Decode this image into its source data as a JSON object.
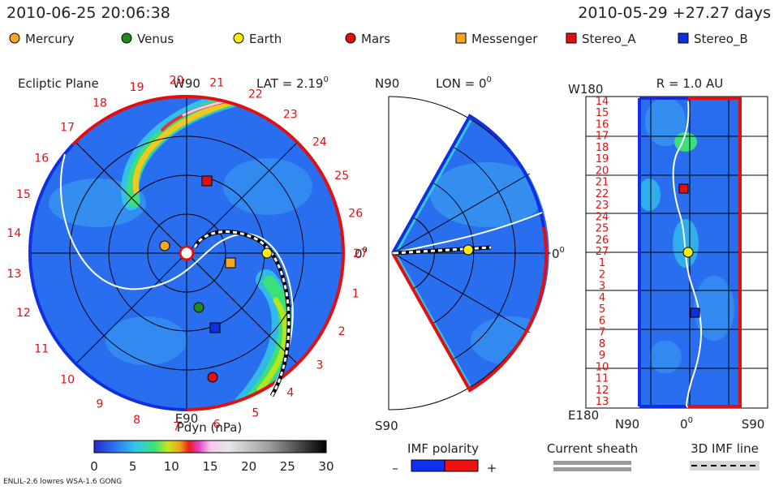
{
  "header": {
    "datetime": "2010-06-25 20:06:38",
    "reference": "2010-05-29 +27.27 days"
  },
  "legend": [
    {
      "label": "Mercury",
      "shape": "circle",
      "color": "#f5a623"
    },
    {
      "label": "Venus",
      "shape": "circle",
      "color": "#1e8a1e"
    },
    {
      "label": "Earth",
      "shape": "circle",
      "color": "#ffee00"
    },
    {
      "label": "Mars",
      "shape": "circle",
      "color": "#e01010"
    },
    {
      "label": "Messenger",
      "shape": "square",
      "color": "#f5a623"
    },
    {
      "label": "Stereo_A",
      "shape": "square",
      "color": "#e01010"
    },
    {
      "label": "Stereo_B",
      "shape": "square",
      "color": "#1030e0"
    }
  ],
  "panels": {
    "ecliptic": {
      "title": "Ecliptic Plane",
      "top_label": "W90",
      "bottom_label": "E90",
      "right_label": "0",
      "right_label_sup": "0",
      "lat_label": "LAT = 2.19",
      "lat_sup": "0",
      "day_ticks": [
        "20",
        "21",
        "22",
        "23",
        "24",
        "25",
        "26",
        "27",
        "1",
        "2",
        "3",
        "4",
        "5",
        "6",
        "7",
        "8",
        "9",
        "10",
        "11",
        "12",
        "13",
        "14",
        "15",
        "16",
        "17",
        "18",
        "19"
      ]
    },
    "meridional": {
      "top_label": "N90",
      "bottom_label": "S90",
      "right_label": "0",
      "right_label_sup": "0",
      "lon_label": "LON = 0",
      "lon_sup": "0"
    },
    "radial": {
      "title": "R = 1.0 AU",
      "top_left": "W180",
      "bottom_left": "E180",
      "x_ticks": [
        "N90",
        "0",
        "S90"
      ],
      "x_mid_sup": "0",
      "day_ticks": [
        "14",
        "15",
        "16",
        "17",
        "18",
        "19",
        "20",
        "21",
        "22",
        "23",
        "24",
        "25",
        "26",
        "27",
        "1",
        "2",
        "3",
        "4",
        "5",
        "6",
        "7",
        "8",
        "9",
        "10",
        "11",
        "12",
        "13"
      ]
    }
  },
  "colorbar": {
    "title": "Pdyn (nPa)",
    "ticks": [
      "0",
      "5",
      "10",
      "15",
      "20",
      "25",
      "30"
    ]
  },
  "keys": {
    "imf_polarity": {
      "label": "IMF polarity",
      "minus": "–",
      "plus": "+"
    },
    "current_sheath": {
      "label": "Current sheath"
    },
    "imf_line": {
      "label": "3D IMF line"
    }
  },
  "footer": {
    "model": "ENLIL-2.6 lowres WSA-1.6 GONG"
  },
  "colors": {
    "background_field": "#2a6ef0",
    "polarity_negative": "#1030f0",
    "polarity_positive": "#f01010"
  }
}
